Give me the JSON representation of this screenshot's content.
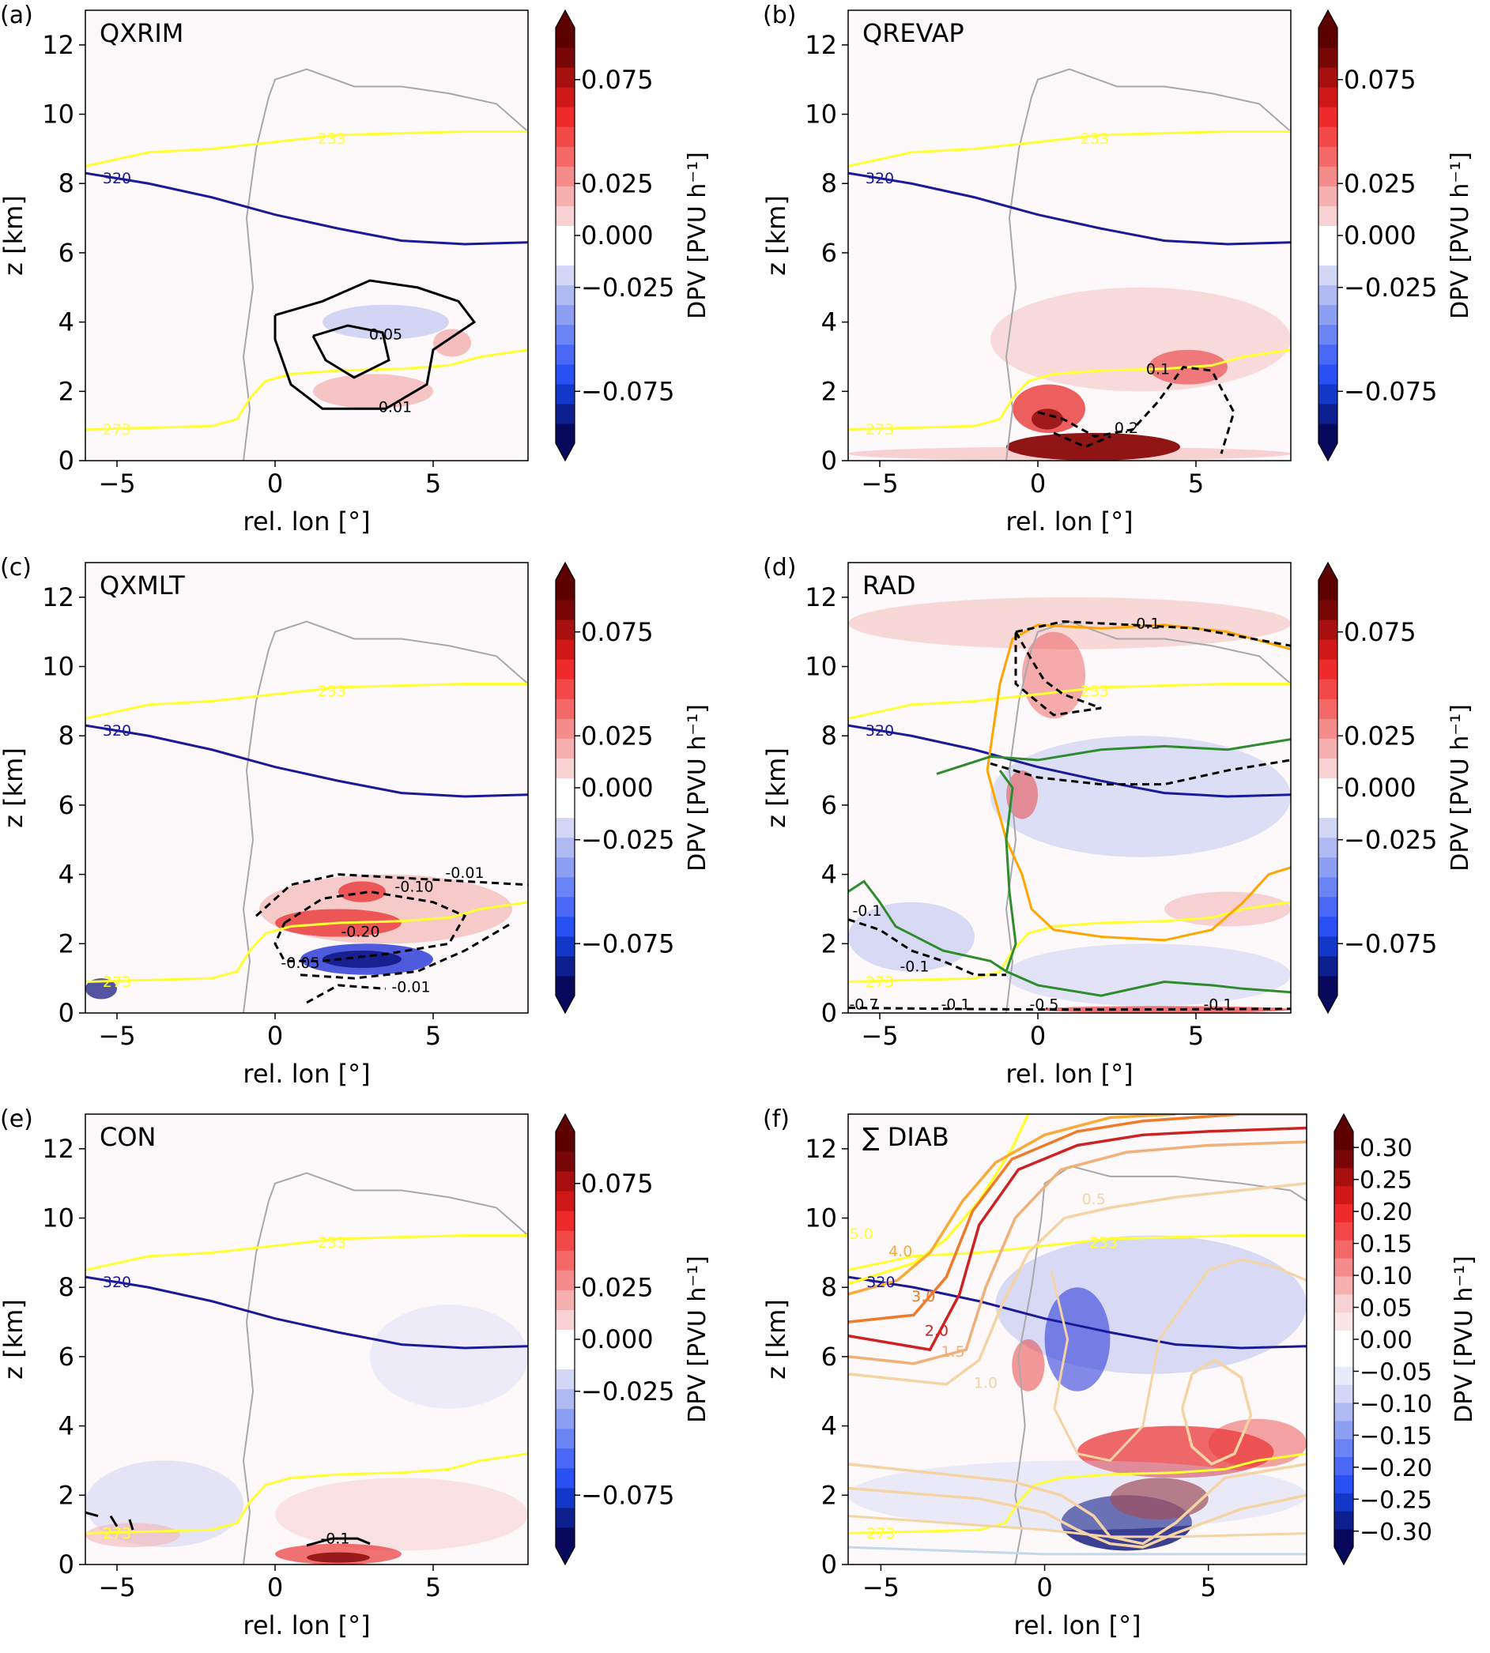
{
  "figure": {
    "colors": {
      "yellow": "#ffff33",
      "navy": "#1a1a99",
      "gray": "#a8a8a8",
      "orange": "#ffa500",
      "green": "#2e8b2e",
      "panel_background": "#fdf8f9"
    },
    "cmap_a": [
      "#08085c",
      "#0d1f8f",
      "#1337c9",
      "#2850f2",
      "#4868f5",
      "#6a84f5",
      "#8d9ff2",
      "#b0baf2",
      "#d2d7f5",
      "#ffffff",
      "#ffffff",
      "#f8d2d2",
      "#f6b0b0",
      "#f58c8c",
      "#f46868",
      "#f24848",
      "#ee2a2a",
      "#d11818",
      "#a80f0f",
      "#7a0707",
      "#5c0000"
    ],
    "cmap_f": [
      "#08085c",
      "#0d1f8f",
      "#1337c9",
      "#2850f2",
      "#4868f5",
      "#6a84f5",
      "#8d9ff2",
      "#b0baf2",
      "#d2d7f5",
      "#e8ebfa",
      "#ffffff",
      "#ffffff",
      "#fae6e6",
      "#f8d2d2",
      "#f6b0b0",
      "#f58c8c",
      "#f46868",
      "#f24848",
      "#ee2a2a",
      "#d11818",
      "#a80f0f",
      "#7a0707",
      "#5c0000"
    ],
    "theta_label": "320",
    "temp_labels": [
      "233",
      "273"
    ]
  },
  "chart_data": [
    {
      "type": "heatmap",
      "panel": "(a)",
      "title": "QXRIM",
      "xlabel": "rel. lon [°]",
      "ylabel": "z [km]",
      "xlim": [
        -6,
        8
      ],
      "ylim": [
        0,
        13
      ],
      "x_ticks": [
        "−5",
        "0",
        "5"
      ],
      "y_ticks": [
        "0",
        "2",
        "4",
        "6",
        "8",
        "10",
        "12"
      ],
      "colorbar_label": "DPV [PVU h⁻¹]",
      "colorbar_ticks": [
        "0.075",
        "0.025",
        "0.000",
        "−0.025",
        "−0.075"
      ],
      "contour_labels": [
        "0.01",
        "0.05"
      ]
    },
    {
      "type": "heatmap",
      "panel": "(b)",
      "title": "QREVAP",
      "xlabel": "rel. lon [°]",
      "ylabel": "z [km]",
      "xlim": [
        -6,
        8
      ],
      "ylim": [
        0,
        13
      ],
      "x_ticks": [
        "−5",
        "0",
        "5"
      ],
      "y_ticks": [
        "0",
        "2",
        "4",
        "6",
        "8",
        "10",
        "12"
      ],
      "colorbar_label": "DPV [PVU h⁻¹]",
      "colorbar_ticks": [
        "0.075",
        "0.025",
        "0.000",
        "−0.025",
        "−0.075"
      ],
      "contour_labels": [
        "0.1",
        "0.2"
      ]
    },
    {
      "type": "heatmap",
      "panel": "(c)",
      "title": "QXMLT",
      "xlabel": "rel. lon [°]",
      "ylabel": "z [km]",
      "xlim": [
        -6,
        8
      ],
      "ylim": [
        0,
        13
      ],
      "x_ticks": [
        "−5",
        "0",
        "5"
      ],
      "y_ticks": [
        "0",
        "2",
        "4",
        "6",
        "8",
        "10",
        "12"
      ],
      "colorbar_label": "DPV [PVU h⁻¹]",
      "colorbar_ticks": [
        "0.075",
        "0.025",
        "0.000",
        "−0.025",
        "−0.075"
      ],
      "contour_labels": [
        "-0.01",
        "-0.10",
        "-0.20",
        "-0.05",
        "-0.01"
      ]
    },
    {
      "type": "heatmap",
      "panel": "(d)",
      "title": "RAD",
      "xlabel": "rel. lon [°]",
      "ylabel": "z [km]",
      "xlim": [
        -6,
        8
      ],
      "ylim": [
        0,
        13
      ],
      "x_ticks": [
        "−5",
        "0",
        "5"
      ],
      "y_ticks": [
        "0",
        "2",
        "4",
        "6",
        "8",
        "10",
        "12"
      ],
      "colorbar_label": "DPV [PVU h⁻¹]",
      "colorbar_ticks": [
        "0.075",
        "0.025",
        "0.000",
        "−0.025",
        "−0.075"
      ],
      "contour_labels": [
        "-0.1",
        "-0.1",
        "-0.1",
        "-0.7",
        "-0.1",
        "-0.5",
        "-0.1"
      ]
    },
    {
      "type": "heatmap",
      "panel": "(e)",
      "title": "CON",
      "xlabel": "rel. lon [°]",
      "ylabel": "z [km]",
      "xlim": [
        -6,
        8
      ],
      "ylim": [
        0,
        13
      ],
      "x_ticks": [
        "−5",
        "0",
        "5"
      ],
      "y_ticks": [
        "0",
        "2",
        "4",
        "6",
        "8",
        "10",
        "12"
      ],
      "colorbar_label": "DPV [PVU h⁻¹]",
      "colorbar_ticks": [
        "0.075",
        "0.025",
        "0.000",
        "−0.025",
        "−0.075"
      ],
      "contour_labels": [
        "-0.1"
      ]
    },
    {
      "type": "heatmap",
      "panel": "(f)",
      "title": "∑ DIAB",
      "xlabel": "rel. lon [°]",
      "ylabel": "z [km]",
      "xlim": [
        -6,
        8
      ],
      "ylim": [
        0,
        13
      ],
      "x_ticks": [
        "−5",
        "0",
        "5"
      ],
      "y_ticks": [
        "0",
        "2",
        "4",
        "6",
        "8",
        "10",
        "12"
      ],
      "colorbar_label": "DPV [PVU h⁻¹]",
      "colorbar_ticks": [
        "0.30",
        "0.25",
        "0.20",
        "0.15",
        "0.10",
        "0.05",
        "0.00",
        "−0.05",
        "−0.10",
        "−0.15",
        "−0.20",
        "−0.25",
        "−0.30"
      ],
      "contour_labels": [
        "5.0",
        "4.0",
        "3.0",
        "2.0",
        "1.5",
        "1.0",
        "0.5"
      ]
    }
  ]
}
